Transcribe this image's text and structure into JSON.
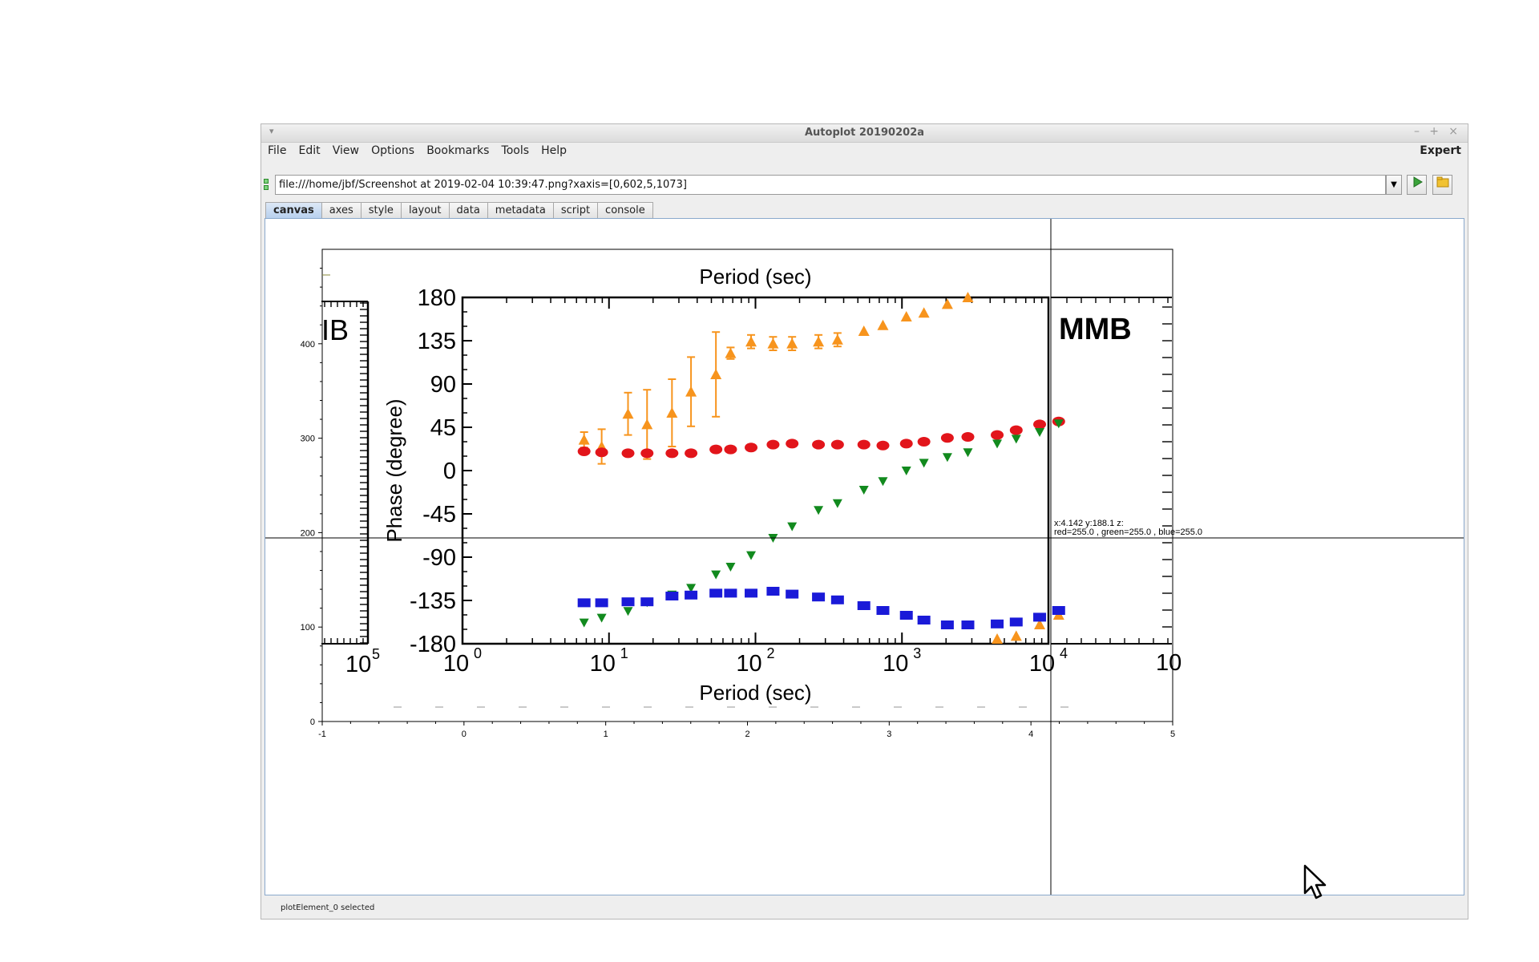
{
  "window": {
    "title": "Autoplot 20190202a",
    "controls": [
      "–",
      "+",
      "×"
    ]
  },
  "menu": {
    "items": [
      "File",
      "Edit",
      "View",
      "Options",
      "Bookmarks",
      "Tools",
      "Help"
    ],
    "expert": "Expert"
  },
  "url": {
    "value": "file:///home/jbf/Screenshot at 2019-02-04 10:39:47.png?xaxis=[0,602,5,1073]"
  },
  "tabs": [
    "canvas",
    "axes",
    "style",
    "layout",
    "data",
    "metadata",
    "script",
    "console"
  ],
  "active_tab": "canvas",
  "crosshair": {
    "line1": "x:4.142  y:188.1  z:",
    "line2": "red=255.0 , green=255.0 , blue=255.0"
  },
  "status": "plotElement_0 selected",
  "colors": {
    "orange": "#f7941d",
    "red": "#e2151b",
    "green": "#128a1e",
    "blue": "#1a1ad8"
  },
  "chart_data": [
    {
      "type": "scatter",
      "title": "",
      "x_ticks": [
        "-1",
        "0",
        "1",
        "2",
        "3",
        "4",
        "5"
      ],
      "xlim": [
        -1,
        5
      ],
      "y_ticks": [
        "0",
        "100",
        "200",
        "300",
        "400"
      ],
      "ylim": [
        0,
        500
      ],
      "xlabel": "",
      "ylabel": ""
    },
    {
      "type": "scatter",
      "title": "Period (sec)",
      "xlabel": "Period (sec)",
      "ylabel": "Phase (degree)",
      "x_scale": "log",
      "xlim": [
        0,
        4.1
      ],
      "ylim": [
        -180,
        180
      ],
      "x_ticks": [
        "10",
        "10",
        "10",
        "10",
        "10"
      ],
      "x_tick_exponents": [
        "0",
        "1",
        "2",
        "3",
        "4"
      ],
      "y_ticks": [
        "180",
        "135",
        "90",
        "45",
        "0",
        "-45",
        "-90",
        "-135",
        "-180"
      ],
      "fragments": {
        "left_label": "IB",
        "left_tick": "10",
        "left_tick_exp": "5",
        "right_label": "MMB",
        "right_tick": "10"
      },
      "series": [
        {
          "color": "orange",
          "marker": "triangle",
          "points": [
            {
              "x": 0.83,
              "y": 32,
              "e": 8
            },
            {
              "x": 0.95,
              "y": 25,
              "e": 18
            },
            {
              "x": 1.13,
              "y": 59,
              "e": 22
            },
            {
              "x": 1.26,
              "y": 48,
              "e": 36
            },
            {
              "x": 1.43,
              "y": 60,
              "e": 35
            },
            {
              "x": 1.56,
              "y": 82,
              "e": 36
            },
            {
              "x": 1.73,
              "y": 100,
              "e": 44
            },
            {
              "x": 1.83,
              "y": 122,
              "e": 6
            },
            {
              "x": 1.97,
              "y": 134,
              "e": 7
            },
            {
              "x": 2.12,
              "y": 132,
              "e": 7
            },
            {
              "x": 2.25,
              "y": 132,
              "e": 7
            },
            {
              "x": 2.43,
              "y": 134,
              "e": 7
            },
            {
              "x": 2.56,
              "y": 136,
              "e": 7
            },
            {
              "x": 2.74,
              "y": 145,
              "e": 5
            },
            {
              "x": 2.87,
              "y": 151,
              "e": 5
            },
            {
              "x": 3.03,
              "y": 160,
              "e": 4
            },
            {
              "x": 3.15,
              "y": 164,
              "e": 4
            },
            {
              "x": 3.31,
              "y": 173,
              "e": 4
            },
            {
              "x": 3.45,
              "y": 180,
              "e": 3
            },
            {
              "x": 3.65,
              "y": -175,
              "e": 4
            },
            {
              "x": 3.78,
              "y": -172,
              "e": 4
            },
            {
              "x": 3.94,
              "y": -160,
              "e": 4
            },
            {
              "x": 4.07,
              "y": -150,
              "e": 4
            }
          ]
        },
        {
          "color": "red",
          "marker": "circle",
          "points": [
            {
              "x": 0.83,
              "y": 20
            },
            {
              "x": 0.95,
              "y": 19
            },
            {
              "x": 1.13,
              "y": 18
            },
            {
              "x": 1.26,
              "y": 18
            },
            {
              "x": 1.43,
              "y": 18
            },
            {
              "x": 1.56,
              "y": 18
            },
            {
              "x": 1.73,
              "y": 22
            },
            {
              "x": 1.83,
              "y": 22
            },
            {
              "x": 1.97,
              "y": 24
            },
            {
              "x": 2.12,
              "y": 27
            },
            {
              "x": 2.25,
              "y": 28
            },
            {
              "x": 2.43,
              "y": 27
            },
            {
              "x": 2.56,
              "y": 27
            },
            {
              "x": 2.74,
              "y": 27
            },
            {
              "x": 2.87,
              "y": 26
            },
            {
              "x": 3.03,
              "y": 28
            },
            {
              "x": 3.15,
              "y": 30
            },
            {
              "x": 3.31,
              "y": 34
            },
            {
              "x": 3.45,
              "y": 35
            },
            {
              "x": 3.65,
              "y": 37
            },
            {
              "x": 3.78,
              "y": 42
            },
            {
              "x": 3.94,
              "y": 48
            },
            {
              "x": 4.07,
              "y": 51
            }
          ]
        },
        {
          "color": "green",
          "marker": "triangle-down",
          "points": [
            {
              "x": 0.83,
              "y": -158
            },
            {
              "x": 0.95,
              "y": -153
            },
            {
              "x": 1.13,
              "y": -146
            },
            {
              "x": 1.26,
              "y": -137
            },
            {
              "x": 1.43,
              "y": -129
            },
            {
              "x": 1.56,
              "y": -122
            },
            {
              "x": 1.73,
              "y": -108
            },
            {
              "x": 1.83,
              "y": -100
            },
            {
              "x": 1.97,
              "y": -88
            },
            {
              "x": 2.12,
              "y": -70
            },
            {
              "x": 2.25,
              "y": -58
            },
            {
              "x": 2.43,
              "y": -41
            },
            {
              "x": 2.56,
              "y": -34
            },
            {
              "x": 2.74,
              "y": -20
            },
            {
              "x": 2.87,
              "y": -11
            },
            {
              "x": 3.03,
              "y": 0
            },
            {
              "x": 3.15,
              "y": 8
            },
            {
              "x": 3.31,
              "y": 14
            },
            {
              "x": 3.45,
              "y": 19
            },
            {
              "x": 3.65,
              "y": 28
            },
            {
              "x": 3.78,
              "y": 33
            },
            {
              "x": 3.94,
              "y": 40
            },
            {
              "x": 4.07,
              "y": 49
            }
          ]
        },
        {
          "color": "blue",
          "marker": "square",
          "points": [
            {
              "x": 0.83,
              "y": -137
            },
            {
              "x": 0.95,
              "y": -137
            },
            {
              "x": 1.13,
              "y": -136
            },
            {
              "x": 1.26,
              "y": -136
            },
            {
              "x": 1.43,
              "y": -130
            },
            {
              "x": 1.56,
              "y": -129
            },
            {
              "x": 1.73,
              "y": -127
            },
            {
              "x": 1.83,
              "y": -127
            },
            {
              "x": 1.97,
              "y": -127
            },
            {
              "x": 2.12,
              "y": -125
            },
            {
              "x": 2.25,
              "y": -128
            },
            {
              "x": 2.43,
              "y": -131
            },
            {
              "x": 2.56,
              "y": -134
            },
            {
              "x": 2.74,
              "y": -140
            },
            {
              "x": 2.87,
              "y": -145
            },
            {
              "x": 3.03,
              "y": -150
            },
            {
              "x": 3.15,
              "y": -155
            },
            {
              "x": 3.31,
              "y": -160
            },
            {
              "x": 3.45,
              "y": -160
            },
            {
              "x": 3.65,
              "y": -159
            },
            {
              "x": 3.78,
              "y": -157
            },
            {
              "x": 3.94,
              "y": -152
            },
            {
              "x": 4.07,
              "y": -145
            }
          ]
        }
      ]
    }
  ]
}
